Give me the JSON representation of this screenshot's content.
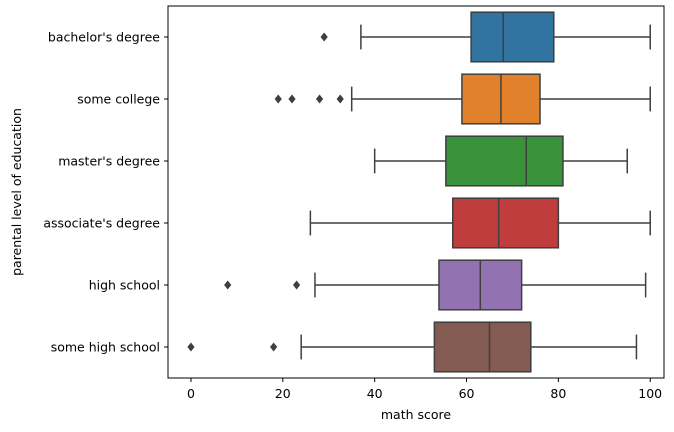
{
  "chart_data": {
    "type": "box",
    "orientation": "horizontal",
    "title": "",
    "xlabel": "math score",
    "ylabel": "parental level of education",
    "xlim": [
      -5,
      103
    ],
    "xticks": [
      0,
      20,
      40,
      60,
      80,
      100
    ],
    "xtick_labels": [
      "0",
      "20",
      "40",
      "60",
      "80",
      "100"
    ],
    "grid": false,
    "legend": "none",
    "line_color": "#3f3f3f",
    "outlier_marker": "diamond",
    "categories": [
      "bachelor's degree",
      "some college",
      "master's degree",
      "associate's degree",
      "high school",
      "some high school"
    ],
    "series": [
      {
        "q1": 61,
        "median": 68,
        "q3": 79,
        "whisker_low": 37,
        "whisker_high": 100,
        "outliers": [
          29
        ],
        "color": "#3274a1"
      },
      {
        "q1": 59,
        "median": 67.5,
        "q3": 76,
        "whisker_low": 35,
        "whisker_high": 100,
        "outliers": [
          19,
          22,
          28,
          32.5
        ],
        "color": "#e1812c"
      },
      {
        "q1": 55.5,
        "median": 73,
        "q3": 81,
        "whisker_low": 40,
        "whisker_high": 95,
        "outliers": [],
        "color": "#3a923a"
      },
      {
        "q1": 57,
        "median": 67,
        "q3": 80,
        "whisker_low": 26,
        "whisker_high": 100,
        "outliers": [],
        "color": "#c03d3e"
      },
      {
        "q1": 54,
        "median": 63,
        "q3": 72,
        "whisker_low": 27,
        "whisker_high": 99,
        "outliers": [
          8,
          23
        ],
        "color": "#9372b2"
      },
      {
        "q1": 53,
        "median": 65,
        "q3": 74,
        "whisker_low": 24,
        "whisker_high": 97,
        "outliers": [
          0,
          18
        ],
        "color": "#845b53"
      }
    ]
  }
}
